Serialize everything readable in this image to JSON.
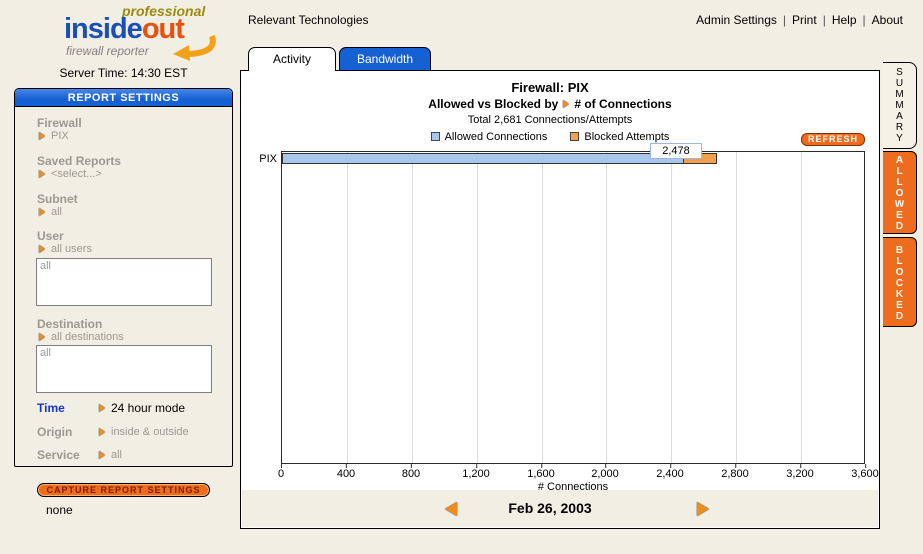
{
  "header": {
    "logo": {
      "professional": "professional",
      "inside": "inside",
      "out": "out",
      "tagline": "firewall reporter"
    },
    "server_time": "Server Time:  14:30 EST",
    "site_label": "Relevant Technologies",
    "links": [
      "Admin Settings",
      "Print",
      "Help",
      "About"
    ],
    "separator": "|"
  },
  "sidebar": {
    "title": "REPORT SETTINGS",
    "fields": [
      {
        "label": "Firewall",
        "value": "PIX"
      },
      {
        "label": "Saved Reports",
        "value": "<select...>"
      },
      {
        "label": "Subnet",
        "value": "all"
      },
      {
        "label": "User",
        "value": "all users",
        "listbox": "all"
      },
      {
        "label": "Destination",
        "value": "all destinations",
        "listbox": "all"
      }
    ],
    "inline_fields": [
      {
        "label": "Time",
        "value": "24 hour mode"
      },
      {
        "label": "Origin",
        "value": "inside & outside"
      },
      {
        "label": "Service",
        "value": "all"
      }
    ],
    "capture_button": "CAPTURE REPORT SETTINGS",
    "status_text": "none"
  },
  "tabs": [
    {
      "label": "Activity",
      "active": true
    },
    {
      "label": "Bandwidth",
      "active": false
    }
  ],
  "side_tabs": [
    {
      "label": "SUMMARY"
    },
    {
      "label": "ALLOWED"
    },
    {
      "label": "BLOCKED"
    }
  ],
  "chart": {
    "title": "Firewall: PIX",
    "subtitle_prefix": "Allowed vs Blocked by",
    "subtitle_suffix": "# of Connections",
    "total": "Total 2,681 Connections/Attempts",
    "legend": [
      {
        "label": "Allowed Connections"
      },
      {
        "label": "Blocked Attempts"
      }
    ],
    "refresh_button": "REFRESH",
    "bar_label": "PIX",
    "bar_value_label": "2,478",
    "xlabel": "# Connections",
    "date": "Feb 26, 2003"
  },
  "chart_data": {
    "type": "bar",
    "orientation": "horizontal",
    "stacked": true,
    "categories": [
      "PIX"
    ],
    "series": [
      {
        "name": "Allowed Connections",
        "values": [
          2478
        ]
      },
      {
        "name": "Blocked Attempts",
        "values": [
          203
        ]
      }
    ],
    "total_connections": 2681,
    "annotation": "2,478",
    "xlim": [
      0,
      3600
    ],
    "xticks": [
      0,
      400,
      800,
      1200,
      1600,
      2000,
      2400,
      2800,
      3200,
      3600
    ],
    "xtick_labels": [
      "0",
      "400",
      "800",
      "1,200",
      "1,600",
      "2,000",
      "2,400",
      "2,800",
      "3,200",
      "3,600"
    ],
    "xlabel": "# Connections",
    "grid": true,
    "legend_position": "top",
    "title": "Firewall: PIX — Allowed vs Blocked by # of Connections",
    "date": "Feb 26, 2003"
  },
  "colors": {
    "accent_blue": "#1560d2",
    "accent_orange": "#ed6c1e",
    "bar_allowed": "#a9c7ea",
    "bar_blocked": "#f5a04a",
    "logo_blue": "#1b4fb8",
    "logo_orange": "#e8500f"
  }
}
